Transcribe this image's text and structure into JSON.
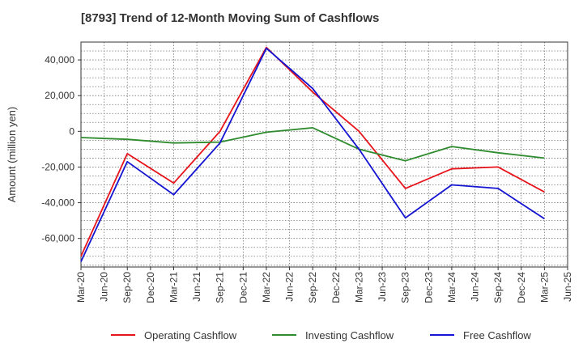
{
  "chart_data": {
    "type": "line",
    "title": "[8793]  Trend of 12-Month Moving Sum of Cashflows",
    "xlabel": "",
    "ylabel": "Amount (million yen)",
    "x": [
      "Mar-20",
      "Jun-20",
      "Sep-20",
      "Dec-20",
      "Mar-21",
      "Jun-21",
      "Sep-21",
      "Dec-21",
      "Mar-22",
      "Jun-22",
      "Sep-22",
      "Dec-22",
      "Mar-23",
      "Jun-23",
      "Sep-23",
      "Dec-23",
      "Mar-24",
      "Jun-24",
      "Sep-24",
      "Dec-24",
      "Mar-25",
      "Jun-25"
    ],
    "ylim": [
      -76000,
      50000
    ],
    "yticks": [
      40000,
      20000,
      0,
      -20000,
      -40000,
      -60000
    ],
    "ytick_labels": [
      "40,000",
      "20,000",
      "0",
      "-20,000",
      "-40,000",
      "-60,000"
    ],
    "grid": true,
    "legend_position": "bottom",
    "series": [
      {
        "name": "Operating Cashflow",
        "color": "#e8141c",
        "points": [
          [
            "Mar-20",
            -70000
          ],
          [
            "Sep-20",
            -12500
          ],
          [
            "Mar-21",
            -29000
          ],
          [
            "Sep-21",
            0
          ],
          [
            "Mar-22",
            47000
          ],
          [
            "Sep-22",
            22000
          ],
          [
            "Mar-23",
            0
          ],
          [
            "Sep-23",
            -32000
          ],
          [
            "Mar-24",
            -21000
          ],
          [
            "Sep-24",
            -20000
          ],
          [
            "Mar-25",
            -34000
          ]
        ]
      },
      {
        "name": "Investing Cashflow",
        "color": "#2e8b2e",
        "points": [
          [
            "Mar-20",
            -3500
          ],
          [
            "Sep-20",
            -4500
          ],
          [
            "Mar-21",
            -6500
          ],
          [
            "Sep-21",
            -6000
          ],
          [
            "Mar-22",
            -500
          ],
          [
            "Sep-22",
            2000
          ],
          [
            "Mar-23",
            -10000
          ],
          [
            "Sep-23",
            -16500
          ],
          [
            "Mar-24",
            -8500
          ],
          [
            "Sep-24",
            -12000
          ],
          [
            "Mar-25",
            -15000
          ]
        ]
      },
      {
        "name": "Free Cashflow",
        "color": "#1414d2",
        "points": [
          [
            "Mar-20",
            -73000
          ],
          [
            "Sep-20",
            -17000
          ],
          [
            "Mar-21",
            -35500
          ],
          [
            "Sep-21",
            -6500
          ],
          [
            "Mar-22",
            46500
          ],
          [
            "Sep-22",
            24000
          ],
          [
            "Mar-23",
            -10000
          ],
          [
            "Sep-23",
            -48500
          ],
          [
            "Mar-24",
            -30000
          ],
          [
            "Sep-24",
            -32000
          ],
          [
            "Mar-25",
            -49000
          ]
        ]
      }
    ]
  }
}
